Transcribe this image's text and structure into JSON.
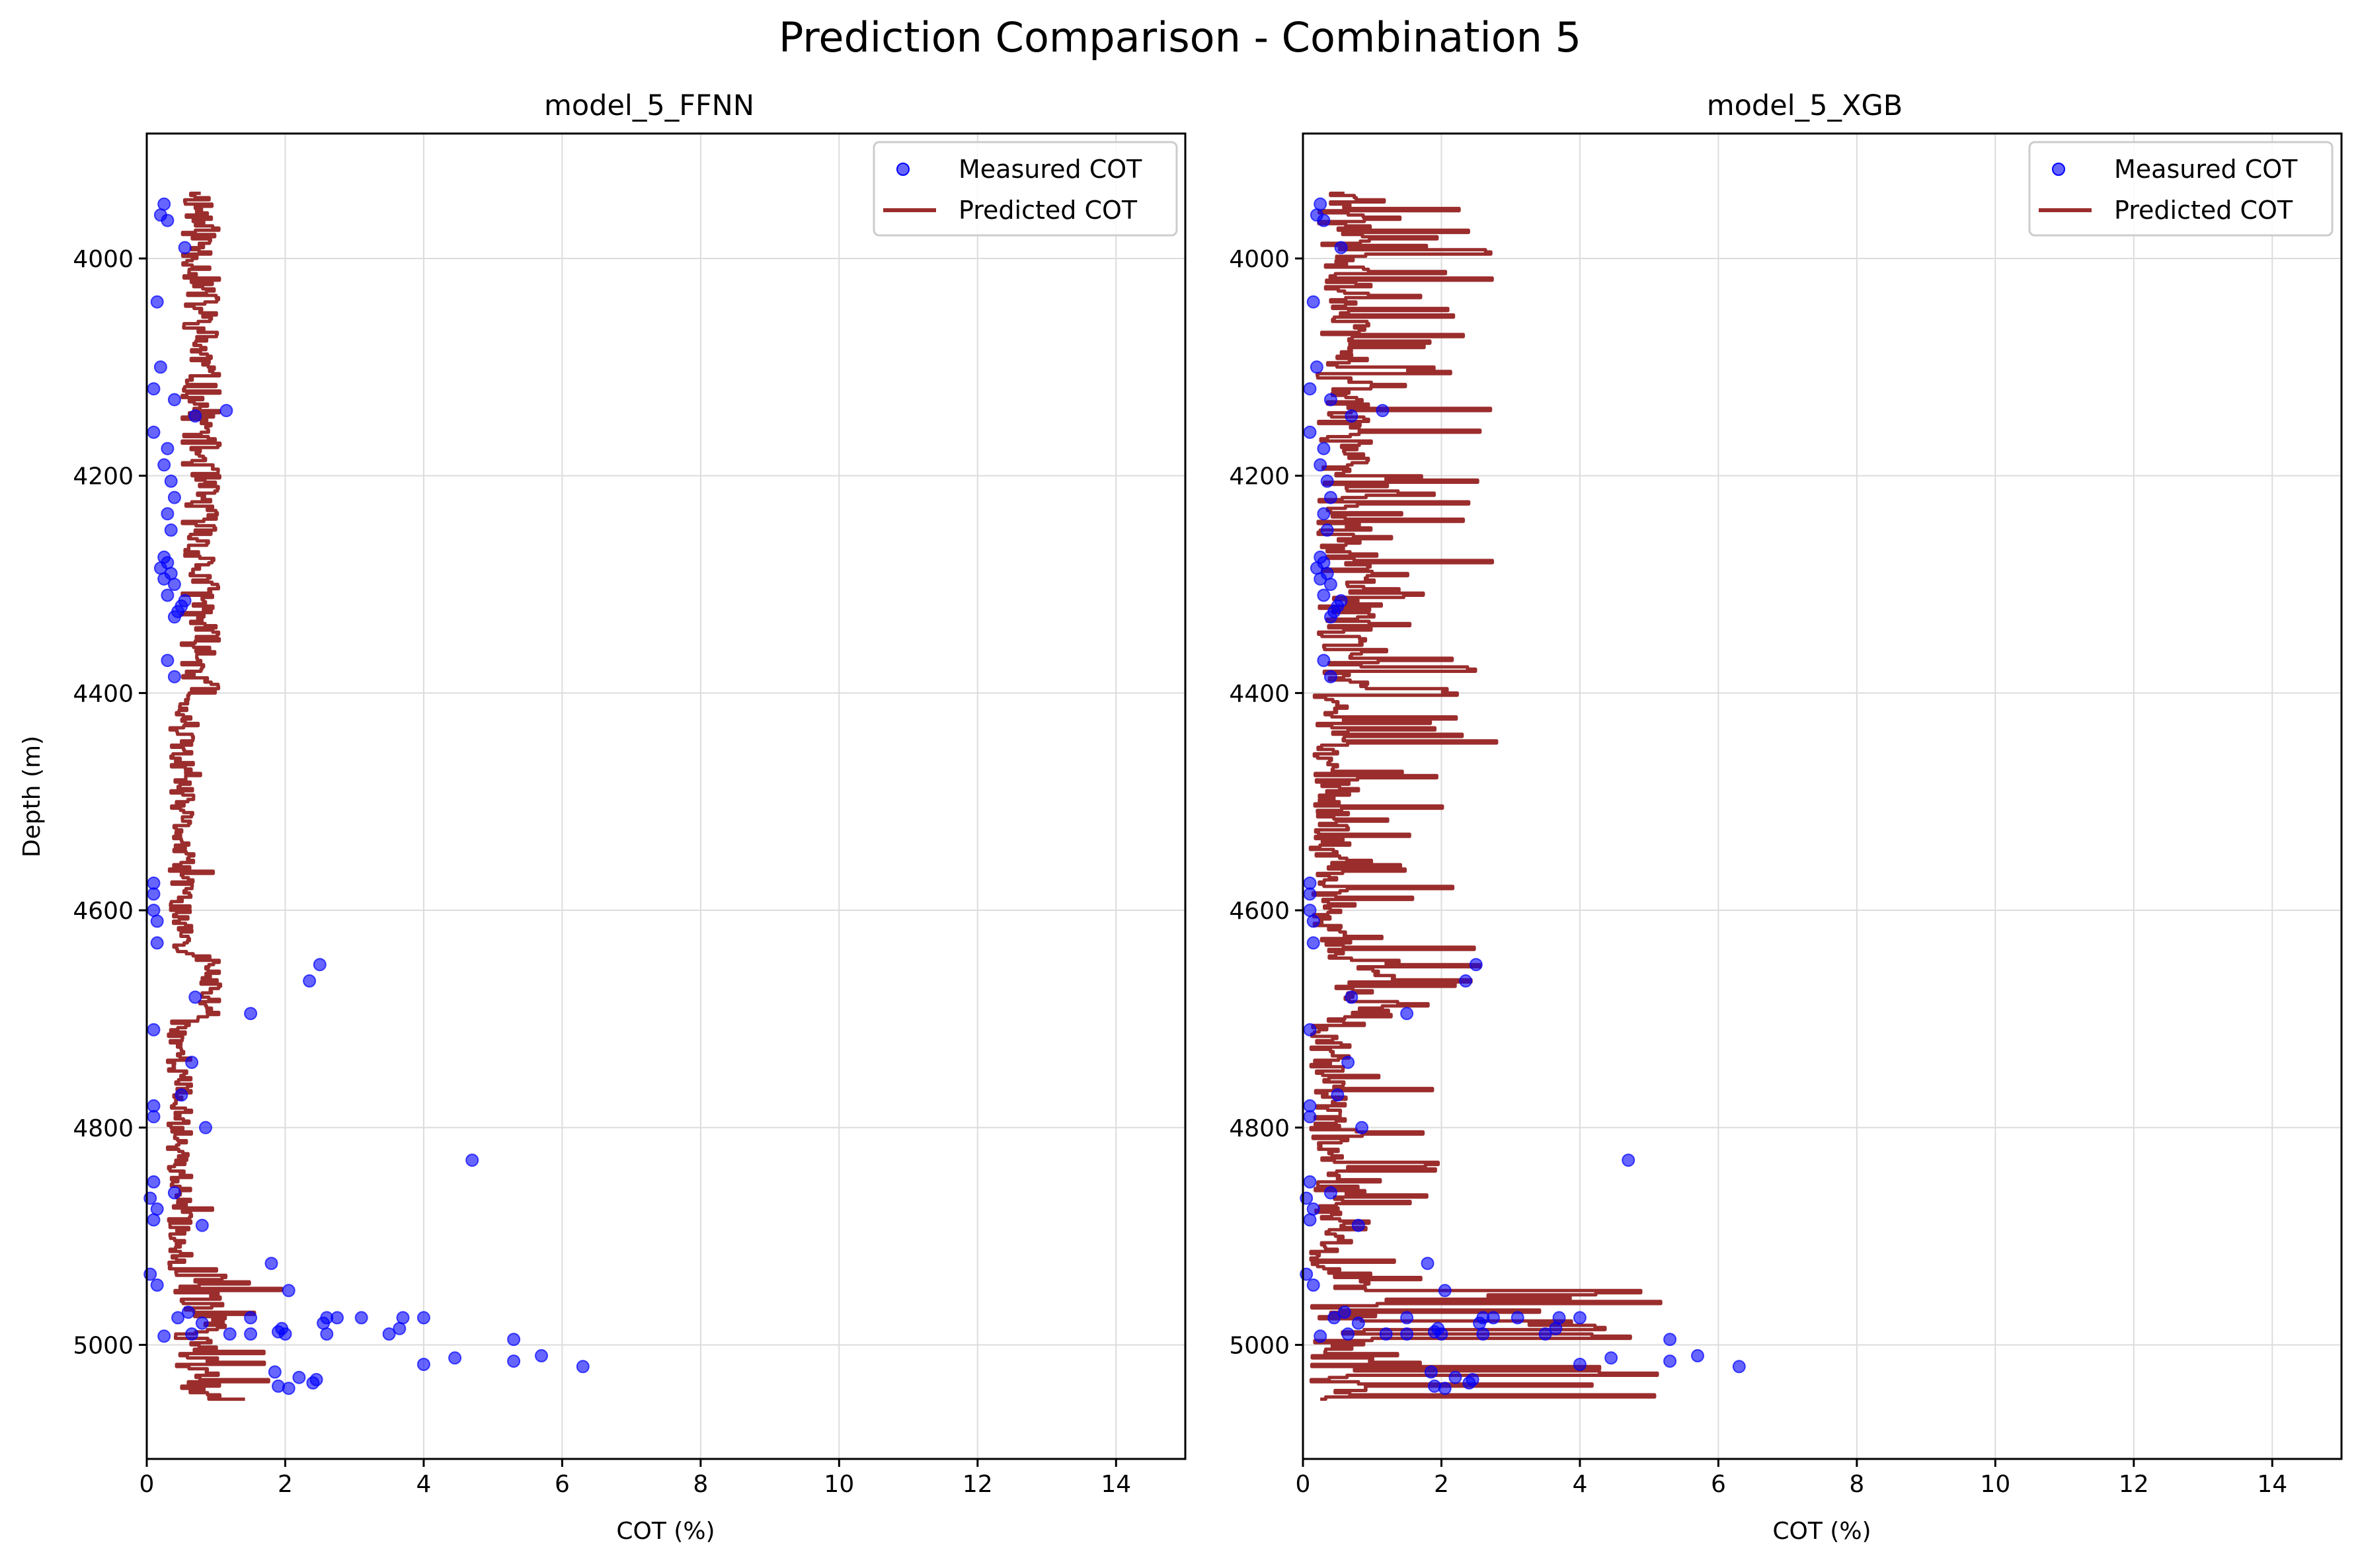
{
  "figure": {
    "suptitle": "Prediction Comparison - Combination 5"
  },
  "colors": {
    "measured": "#0000ff",
    "predicted": "#9b2d2d",
    "grid": "#dcdcdc",
    "axes": "#000000"
  },
  "chart_data": [
    {
      "type": "scatter",
      "title": "model_5_FFNN",
      "xlabel": "COT (%)",
      "ylabel": "Depth (m)",
      "xlim": [
        0,
        15
      ],
      "ylim": [
        5105,
        3885
      ],
      "y_inverted": true,
      "xticks": [
        0,
        2,
        4,
        6,
        8,
        10,
        12,
        14
      ],
      "yticks": [
        4000,
        4200,
        4400,
        4600,
        4800,
        5000
      ],
      "grid": true,
      "legend": {
        "position": "top-right",
        "entries": [
          "Measured COT",
          "Predicted COT"
        ]
      },
      "series": [
        {
          "name": "Measured COT",
          "kind": "scatter",
          "color": "#0000ff",
          "points": [
            [
              0.25,
              3950
            ],
            [
              0.2,
              3960
            ],
            [
              0.3,
              3965
            ],
            [
              0.55,
              3990
            ],
            [
              0.15,
              4040
            ],
            [
              0.2,
              4100
            ],
            [
              0.1,
              4120
            ],
            [
              0.4,
              4130
            ],
            [
              1.15,
              4140
            ],
            [
              0.7,
              4145
            ],
            [
              0.1,
              4160
            ],
            [
              0.3,
              4175
            ],
            [
              0.25,
              4190
            ],
            [
              0.35,
              4205
            ],
            [
              0.4,
              4220
            ],
            [
              0.3,
              4235
            ],
            [
              0.35,
              4250
            ],
            [
              0.25,
              4275
            ],
            [
              0.3,
              4280
            ],
            [
              0.2,
              4285
            ],
            [
              0.35,
              4290
            ],
            [
              0.25,
              4295
            ],
            [
              0.4,
              4300
            ],
            [
              0.3,
              4310
            ],
            [
              0.55,
              4315
            ],
            [
              0.5,
              4320
            ],
            [
              0.45,
              4325
            ],
            [
              0.4,
              4330
            ],
            [
              0.3,
              4370
            ],
            [
              0.4,
              4385
            ],
            [
              0.1,
              4575
            ],
            [
              0.1,
              4585
            ],
            [
              0.1,
              4600
            ],
            [
              0.15,
              4610
            ],
            [
              0.15,
              4630
            ],
            [
              2.5,
              4650
            ],
            [
              2.35,
              4665
            ],
            [
              0.7,
              4680
            ],
            [
              1.5,
              4695
            ],
            [
              0.1,
              4710
            ],
            [
              0.65,
              4740
            ],
            [
              0.5,
              4770
            ],
            [
              0.1,
              4780
            ],
            [
              0.1,
              4790
            ],
            [
              0.85,
              4800
            ],
            [
              4.7,
              4830
            ],
            [
              0.1,
              4850
            ],
            [
              0.4,
              4860
            ],
            [
              0.05,
              4865
            ],
            [
              0.15,
              4875
            ],
            [
              0.1,
              4885
            ],
            [
              0.8,
              4890
            ],
            [
              1.8,
              4925
            ],
            [
              0.05,
              4935
            ],
            [
              0.15,
              4945
            ],
            [
              2.05,
              4950
            ],
            [
              0.6,
              4970
            ],
            [
              0.45,
              4975
            ],
            [
              1.5,
              4975
            ],
            [
              2.6,
              4975
            ],
            [
              2.75,
              4975
            ],
            [
              3.1,
              4975
            ],
            [
              3.7,
              4975
            ],
            [
              4.0,
              4975
            ],
            [
              0.8,
              4980
            ],
            [
              2.55,
              4980
            ],
            [
              3.65,
              4985
            ],
            [
              1.95,
              4985
            ],
            [
              1.9,
              4988
            ],
            [
              1.2,
              4990
            ],
            [
              0.65,
              4990
            ],
            [
              1.5,
              4990
            ],
            [
              2.0,
              4990
            ],
            [
              2.6,
              4990
            ],
            [
              3.5,
              4990
            ],
            [
              0.25,
              4992
            ],
            [
              5.3,
              4995
            ],
            [
              5.7,
              5010
            ],
            [
              4.45,
              5012
            ],
            [
              5.3,
              5015
            ],
            [
              4.0,
              5018
            ],
            [
              6.3,
              5020
            ],
            [
              1.85,
              5025
            ],
            [
              2.2,
              5030
            ],
            [
              2.45,
              5032
            ],
            [
              2.4,
              5035
            ],
            [
              1.9,
              5038
            ],
            [
              2.05,
              5040
            ]
          ]
        },
        {
          "name": "Predicted COT",
          "kind": "line",
          "color": "#9b2d2d",
          "generator": {
            "seed": 11,
            "depth_start": 3940,
            "depth_end": 5050,
            "step": 2,
            "segments": [
              {
                "from": 3940,
                "to": 4400,
                "base": 0.78,
                "amp": 0.28,
                "spike_prob": 0,
                "spike_max": 0
              },
              {
                "from": 4400,
                "to": 4640,
                "base": 0.5,
                "amp": 0.18,
                "spike_prob": 0.05,
                "spike_max": 0.55
              },
              {
                "from": 4640,
                "to": 4700,
                "base": 0.9,
                "amp": 0.2,
                "spike_prob": 0,
                "spike_max": 0
              },
              {
                "from": 4700,
                "to": 4930,
                "base": 0.48,
                "amp": 0.18,
                "spike_prob": 0.03,
                "spike_max": 0.7
              },
              {
                "from": 4930,
                "to": 5050,
                "base": 0.75,
                "amp": 0.4,
                "spike_prob": 0.22,
                "spike_max": 1.25
              }
            ]
          }
        }
      ]
    },
    {
      "type": "scatter",
      "title": "model_5_XGB",
      "xlabel": "COT (%)",
      "ylabel": "",
      "xlim": [
        0,
        15
      ],
      "ylim": [
        5105,
        3885
      ],
      "y_inverted": true,
      "xticks": [
        0,
        2,
        4,
        6,
        8,
        10,
        12,
        14
      ],
      "yticks": [
        4000,
        4200,
        4400,
        4600,
        4800,
        5000
      ],
      "grid": true,
      "legend": {
        "position": "top-right",
        "entries": [
          "Measured COT",
          "Predicted COT"
        ]
      },
      "series": [
        {
          "name": "Measured COT",
          "kind": "scatter",
          "color": "#0000ff",
          "points": [
            [
              0.25,
              3950
            ],
            [
              0.2,
              3960
            ],
            [
              0.3,
              3965
            ],
            [
              0.55,
              3990
            ],
            [
              0.15,
              4040
            ],
            [
              0.2,
              4100
            ],
            [
              0.1,
              4120
            ],
            [
              0.4,
              4130
            ],
            [
              1.15,
              4140
            ],
            [
              0.7,
              4145
            ],
            [
              0.1,
              4160
            ],
            [
              0.3,
              4175
            ],
            [
              0.25,
              4190
            ],
            [
              0.35,
              4205
            ],
            [
              0.4,
              4220
            ],
            [
              0.3,
              4235
            ],
            [
              0.35,
              4250
            ],
            [
              0.25,
              4275
            ],
            [
              0.3,
              4280
            ],
            [
              0.2,
              4285
            ],
            [
              0.35,
              4290
            ],
            [
              0.25,
              4295
            ],
            [
              0.4,
              4300
            ],
            [
              0.3,
              4310
            ],
            [
              0.55,
              4315
            ],
            [
              0.5,
              4320
            ],
            [
              0.45,
              4325
            ],
            [
              0.4,
              4330
            ],
            [
              0.3,
              4370
            ],
            [
              0.4,
              4385
            ],
            [
              0.1,
              4575
            ],
            [
              0.1,
              4585
            ],
            [
              0.1,
              4600
            ],
            [
              0.15,
              4610
            ],
            [
              0.15,
              4630
            ],
            [
              2.5,
              4650
            ],
            [
              2.35,
              4665
            ],
            [
              0.7,
              4680
            ],
            [
              1.5,
              4695
            ],
            [
              0.1,
              4710
            ],
            [
              0.65,
              4740
            ],
            [
              0.5,
              4770
            ],
            [
              0.1,
              4780
            ],
            [
              0.1,
              4790
            ],
            [
              0.85,
              4800
            ],
            [
              4.7,
              4830
            ],
            [
              0.1,
              4850
            ],
            [
              0.4,
              4860
            ],
            [
              0.05,
              4865
            ],
            [
              0.15,
              4875
            ],
            [
              0.1,
              4885
            ],
            [
              0.8,
              4890
            ],
            [
              1.8,
              4925
            ],
            [
              0.05,
              4935
            ],
            [
              0.15,
              4945
            ],
            [
              2.05,
              4950
            ],
            [
              0.6,
              4970
            ],
            [
              0.45,
              4975
            ],
            [
              1.5,
              4975
            ],
            [
              2.6,
              4975
            ],
            [
              2.75,
              4975
            ],
            [
              3.1,
              4975
            ],
            [
              3.7,
              4975
            ],
            [
              4.0,
              4975
            ],
            [
              0.8,
              4980
            ],
            [
              2.55,
              4980
            ],
            [
              3.65,
              4985
            ],
            [
              1.95,
              4985
            ],
            [
              1.9,
              4988
            ],
            [
              1.2,
              4990
            ],
            [
              0.65,
              4990
            ],
            [
              1.5,
              4990
            ],
            [
              2.0,
              4990
            ],
            [
              2.6,
              4990
            ],
            [
              3.5,
              4990
            ],
            [
              0.25,
              4992
            ],
            [
              5.3,
              4995
            ],
            [
              5.7,
              5010
            ],
            [
              4.45,
              5012
            ],
            [
              5.3,
              5015
            ],
            [
              4.0,
              5018
            ],
            [
              6.3,
              5020
            ],
            [
              1.85,
              5025
            ],
            [
              2.2,
              5030
            ],
            [
              2.45,
              5032
            ],
            [
              2.4,
              5035
            ],
            [
              1.9,
              5038
            ],
            [
              2.05,
              5040
            ]
          ]
        },
        {
          "name": "Predicted COT",
          "kind": "line",
          "color": "#9b2d2d",
          "generator": {
            "seed": 29,
            "depth_start": 3940,
            "depth_end": 5050,
            "step": 2,
            "segments": [
              {
                "from": 3940,
                "to": 4400,
                "base": 0.6,
                "amp": 0.4,
                "spike_prob": 0.3,
                "spike_max": 2.2
              },
              {
                "from": 4400,
                "to": 4640,
                "base": 0.4,
                "amp": 0.3,
                "spike_prob": 0.15,
                "spike_max": 2.5
              },
              {
                "from": 4640,
                "to": 4700,
                "base": 0.8,
                "amp": 0.5,
                "spike_prob": 0.35,
                "spike_max": 1.9
              },
              {
                "from": 4700,
                "to": 4930,
                "base": 0.4,
                "amp": 0.3,
                "spike_prob": 0.15,
                "spike_max": 1.7
              },
              {
                "from": 4930,
                "to": 5050,
                "base": 0.6,
                "amp": 0.5,
                "spike_prob": 0.4,
                "spike_max": 4.6
              }
            ]
          }
        }
      ]
    }
  ]
}
